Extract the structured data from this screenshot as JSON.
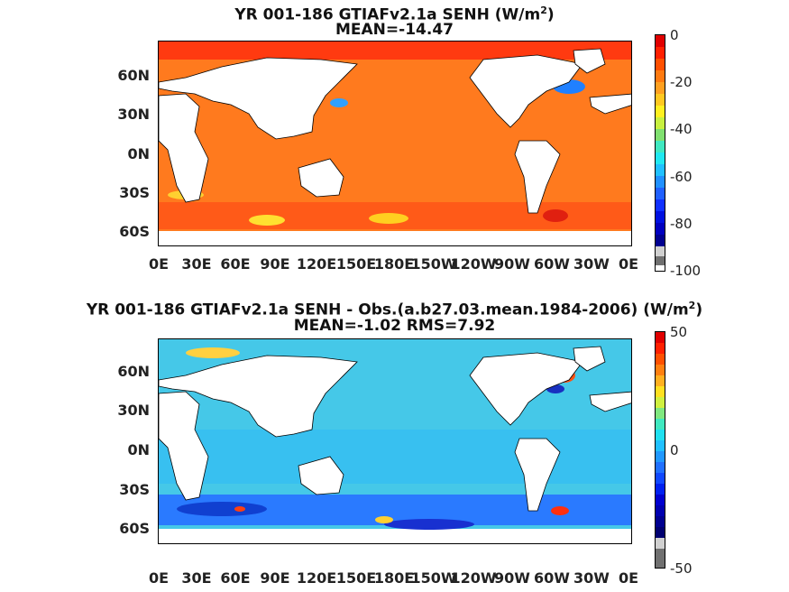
{
  "panel1": {
    "title_prefix": "YR 001-186 GTIAFv2.1a  SENH (W/m",
    "title_sup": "2",
    "title_suffix": ")",
    "subtitle": "MEAN=-14.47",
    "lat_labels": [
      "60N",
      "30N",
      "0N",
      "30S",
      "60S"
    ],
    "lon_labels": [
      "0E",
      "30E",
      "60E",
      "90E",
      "120E",
      "150E",
      "180E",
      "150W",
      "120W",
      "90W",
      "60W",
      "30W",
      "0E"
    ],
    "colorbar_ticks": [
      "0",
      "-20",
      "-40",
      "-60",
      "-80",
      "-100"
    ],
    "colorbar_range": [
      -100,
      0
    ]
  },
  "panel2": {
    "title_prefix": "YR 001-186 GTIAFv2.1a SENH - Obs.(a.b27.03.mean.1984-2006) (W/m",
    "title_sup": "2",
    "title_suffix": ")",
    "subtitle": "MEAN=-1.02 RMS=7.92",
    "lat_labels": [
      "60N",
      "30N",
      "0N",
      "30S",
      "60S"
    ],
    "lon_labels": [
      "0E",
      "30E",
      "60E",
      "90E",
      "120E",
      "150E",
      "180E",
      "150W",
      "120W",
      "90W",
      "60W",
      "30W",
      "0E"
    ],
    "colorbar_ticks": [
      "50",
      "0",
      "-50"
    ],
    "colorbar_range": [
      -50,
      50
    ]
  },
  "colors": {
    "ocean_panel1": "#ff7a1e",
    "ocean_panel2": "#45c8e8",
    "land": "#ffffff",
    "coast": "#000000"
  }
}
